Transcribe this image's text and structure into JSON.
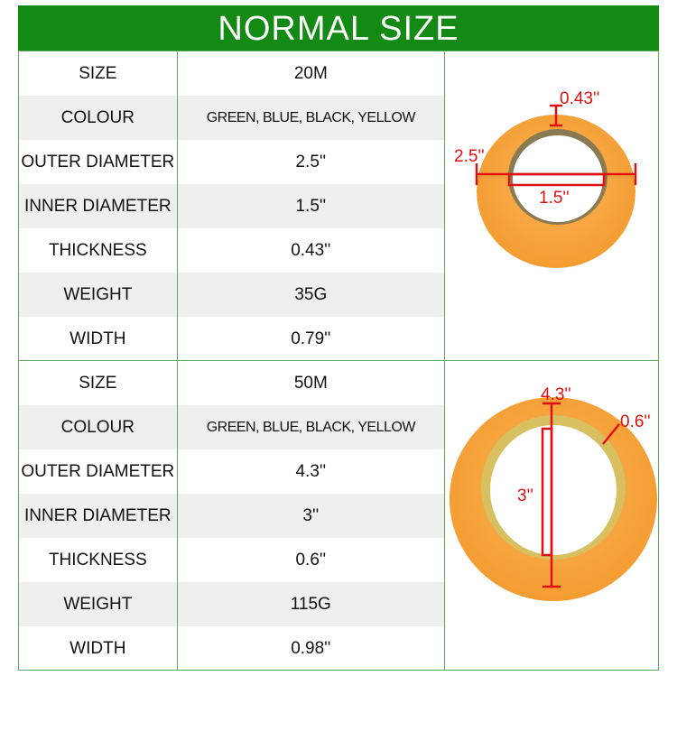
{
  "header": {
    "title": "NORMAL SIZE"
  },
  "colors": {
    "header_green": "#138a14",
    "border_green": "#5fa862",
    "row_gray": "#efefef",
    "tape_orange": "#f7a43c",
    "dimension_red": "#e01010"
  },
  "sections": [
    {
      "rows": [
        {
          "label": "SIZE",
          "value": "20M"
        },
        {
          "label": "COLOUR",
          "value": "GREEN, BLUE, BLACK, YELLOW"
        },
        {
          "label": "OUTER DIAMETER",
          "value": "2.5''"
        },
        {
          "label": "INNER DIAMETER",
          "value": "1.5''"
        },
        {
          "label": "THICKNESS",
          "value": "0.43''"
        },
        {
          "label": "WEIGHT",
          "value": "35G"
        },
        {
          "label": "WIDTH",
          "value": "0.79''"
        }
      ],
      "image": {
        "outer_label": "2.5''",
        "inner_label": "1.5''",
        "thickness_label": "0.43''"
      }
    },
    {
      "rows": [
        {
          "label": "SIZE",
          "value": "50M"
        },
        {
          "label": "COLOUR",
          "value": "GREEN, BLUE, BLACK, YELLOW"
        },
        {
          "label": "OUTER DIAMETER",
          "value": "4.3''"
        },
        {
          "label": "INNER DIAMETER",
          "value": "3''"
        },
        {
          "label": "THICKNESS",
          "value": "0.6''"
        },
        {
          "label": "WEIGHT",
          "value": "115G"
        },
        {
          "label": "WIDTH",
          "value": "0.98''"
        }
      ],
      "image": {
        "outer_label": "4.3''",
        "inner_label": "3''",
        "thickness_label": "0.6''"
      }
    }
  ]
}
